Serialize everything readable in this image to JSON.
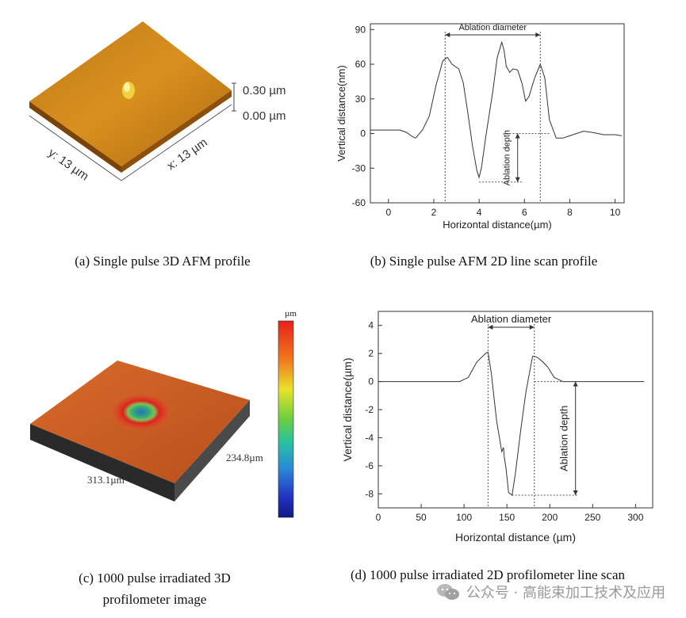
{
  "chart_data": [
    {
      "type": "3d-surface",
      "panel": "a",
      "labels": {
        "z_top": "0.30 µm",
        "z_bottom": "0.00 µm",
        "y_axis": "y: 13 µm",
        "x_axis": "x: 13 µm"
      },
      "caption": "(a) Single pulse 3D AFM profile"
    },
    {
      "type": "line",
      "panel": "b",
      "xlabel": "Horizontal distance(µm)",
      "ylabel": "Vertical distance(nm)",
      "xlim": [
        -0.8,
        10.4
      ],
      "ylim": [
        -60,
        95
      ],
      "xticks": [
        0,
        2,
        4,
        6,
        8,
        10
      ],
      "yticks": [
        -60,
        -30,
        0,
        30,
        60,
        90
      ],
      "series": [
        {
          "x": [
            -0.8,
            0.0,
            0.5,
            0.8,
            1.0,
            1.2,
            1.5,
            1.8,
            2.1,
            2.4,
            2.6,
            2.8,
            3.1,
            3.3,
            3.5,
            3.7,
            3.9,
            4.0,
            4.1,
            4.3,
            4.6,
            4.8,
            5.0,
            5.1,
            5.2,
            5.35,
            5.5,
            5.7,
            5.9,
            6.05,
            6.2,
            6.45,
            6.7,
            6.9,
            7.1,
            7.4,
            7.7,
            8.0,
            8.3,
            8.6,
            9.0,
            9.5,
            10.0,
            10.3
          ],
          "y": [
            3,
            3,
            3,
            1,
            -2,
            -4,
            3,
            15,
            42,
            63,
            66,
            60,
            56,
            44,
            18,
            -10,
            -32,
            -38,
            -30,
            -2,
            36,
            66,
            79,
            72,
            58,
            53,
            56,
            55,
            43,
            28,
            32,
            48,
            60,
            48,
            12,
            -4,
            -4,
            -2,
            0,
            2,
            1,
            -1,
            -1,
            -2
          ]
        }
      ],
      "annotations": {
        "diameter": "Ablation diameter",
        "depth": "Ablation depth"
      },
      "caption": "(b) Single pulse AFM 2D line scan profile"
    },
    {
      "type": "3d-surface",
      "panel": "c",
      "labels": {
        "colorbar_unit": "µm",
        "x_size": "313.1µm",
        "y_size": "234.8µm"
      },
      "caption_line1": "(c) 1000 pulse irradiated 3D",
      "caption_line2": "profilometer image"
    },
    {
      "type": "line",
      "panel": "d",
      "xlabel": "Horizontal distance (µm)",
      "ylabel": "Vertical distance(µm)",
      "xlim": [
        0,
        320
      ],
      "ylim": [
        -9,
        5
      ],
      "xticks": [
        0,
        50,
        100,
        150,
        200,
        250,
        300
      ],
      "yticks": [
        -8,
        -6,
        -4,
        -2,
        0,
        2,
        4
      ],
      "series": [
        {
          "x": [
            0,
            50,
            80,
            95,
            105,
            115,
            125,
            128,
            132,
            138,
            144,
            146,
            147,
            149,
            152,
            156,
            160,
            166,
            172,
            178,
            180,
            182,
            186,
            192,
            198,
            205,
            215,
            230,
            260,
            300,
            310
          ],
          "y": [
            0,
            0,
            0,
            0,
            0.3,
            1.4,
            2.0,
            2.1,
            0.5,
            -2.8,
            -5.0,
            -4.7,
            -5.4,
            -6.2,
            -7.9,
            -8.1,
            -6.5,
            -3.5,
            -0.8,
            1.2,
            1.8,
            1.8,
            1.7,
            1.4,
            1.0,
            0.3,
            0,
            0,
            0,
            0,
            0
          ]
        }
      ],
      "annotations": {
        "diameter": "Ablation diameter",
        "depth": "Ablation depth"
      },
      "caption": "(d) 1000 pulse irradiated 2D profilometer line scan"
    }
  ],
  "watermark": {
    "text": "公众号 · 高能束加工技术及应用",
    "icon": "wechat-icon"
  }
}
